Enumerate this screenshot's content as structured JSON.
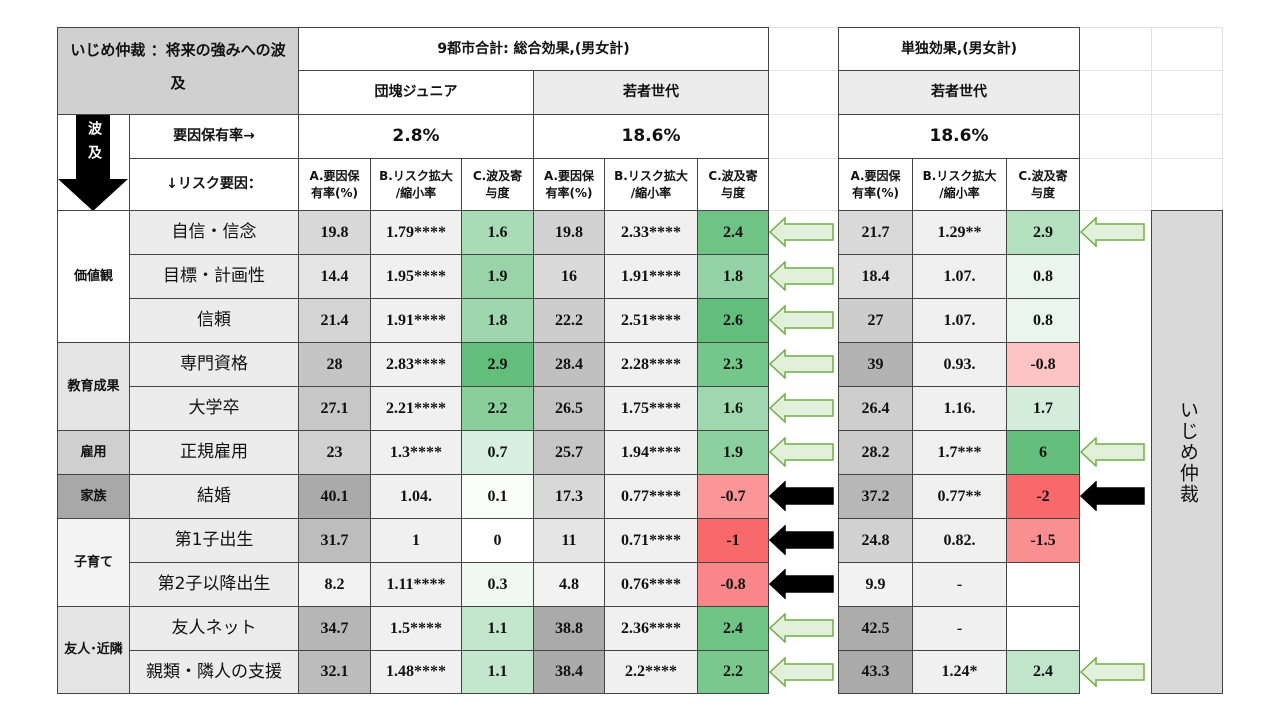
{
  "header": {
    "title": "いじめ仲裁 ：将来の強みへの波及",
    "group1": "9都市合計: 総合効果,(男女計)",
    "group2": "単独効果,(男女計)",
    "subgroups": [
      "団塊ジュニア",
      "若者世代",
      "若者世代"
    ],
    "wave_label": "波及",
    "rate_label": "要因保有率→",
    "rates": [
      "2.8%",
      "18.6%",
      "18.6%"
    ],
    "risk_label": "↓リスク要因：",
    "col_headers": [
      [
        "A.要因保",
        "有率(%)"
      ],
      [
        "B.リスク拡大",
        "/縮小率"
      ],
      [
        "C.波及寄",
        "与度"
      ]
    ]
  },
  "side_label": "いじめ仲裁",
  "groups": [
    {
      "label": "価値観",
      "fill": "#ffffff",
      "rows": [
        {
          "name": "自信・信念",
          "cells": [
            19.8,
            "1.79****",
            1.6,
            19.8,
            "2.33****",
            2.4,
            21.7,
            "1.29**",
            2.9
          ],
          "arrows": [
            "green",
            "green"
          ]
        },
        {
          "name": "目標・計画性",
          "cells": [
            14.4,
            "1.95****",
            1.9,
            16,
            "1.91****",
            1.8,
            18.4,
            "1.07.",
            0.8
          ],
          "arrows": [
            "green",
            null
          ]
        },
        {
          "name": "信頼",
          "cells": [
            21.4,
            "1.91****",
            1.8,
            22.2,
            "2.51****",
            2.6,
            27,
            "1.07.",
            0.8
          ],
          "arrows": [
            "green",
            null
          ]
        }
      ]
    },
    {
      "label": "教育成果",
      "fill": "#e4e4e4",
      "rows": [
        {
          "name": "専門資格",
          "cells": [
            28,
            "2.83****",
            2.9,
            28.4,
            "2.28****",
            2.3,
            39,
            "0.93.",
            -0.8
          ],
          "arrows": [
            "green",
            null
          ]
        },
        {
          "name": "大学卒",
          "cells": [
            27.1,
            "2.21****",
            2.2,
            26.5,
            "1.75****",
            1.6,
            26.4,
            "1.16.",
            1.7
          ],
          "arrows": [
            "green",
            null
          ]
        }
      ]
    },
    {
      "label": "雇用",
      "fill": "#cfcfcf",
      "rows": [
        {
          "name": "正規雇用",
          "cells": [
            23,
            "1.3****",
            0.7,
            25.7,
            "1.94****",
            1.9,
            28.2,
            "1.7***",
            6
          ],
          "arrows": [
            "green",
            "green"
          ]
        }
      ]
    },
    {
      "label": "家族",
      "fill": "#a8a8a8",
      "rows": [
        {
          "name": "結婚",
          "cells": [
            40.1,
            "1.04.",
            0.1,
            17.3,
            "0.77****",
            -0.7,
            37.2,
            "0.77**",
            -2
          ],
          "arrows": [
            "black",
            "black"
          ]
        }
      ]
    },
    {
      "label": "子育て",
      "fill": "#f4f4f4",
      "rows": [
        {
          "name": "第1子出生",
          "cells": [
            31.7,
            "1",
            0,
            11,
            "0.71****",
            -1,
            24.8,
            "0.82.",
            -1.5
          ],
          "arrows": [
            "black",
            null
          ]
        },
        {
          "name": "第2子以降出生",
          "cells": [
            8.2,
            "1.11****",
            0.3,
            4.8,
            "0.76****",
            -0.8,
            9.9,
            "-",
            null
          ],
          "arrows": [
            "black",
            null
          ]
        }
      ]
    },
    {
      "label": "友人･近隣",
      "fill": "#e4e4e4",
      "rows": [
        {
          "name": "友人ネット",
          "cells": [
            34.7,
            "1.5****",
            1.1,
            38.8,
            "2.36****",
            2.4,
            42.5,
            "-",
            null
          ],
          "arrows": [
            "green",
            null
          ]
        },
        {
          "name": "親類・隣人の支援",
          "cells": [
            32.1,
            "1.48****",
            1.1,
            38.4,
            "2.2****",
            2.2,
            43.3,
            "1.24*",
            2.4
          ],
          "arrows": [
            "green",
            "green"
          ]
        }
      ]
    }
  ]
}
